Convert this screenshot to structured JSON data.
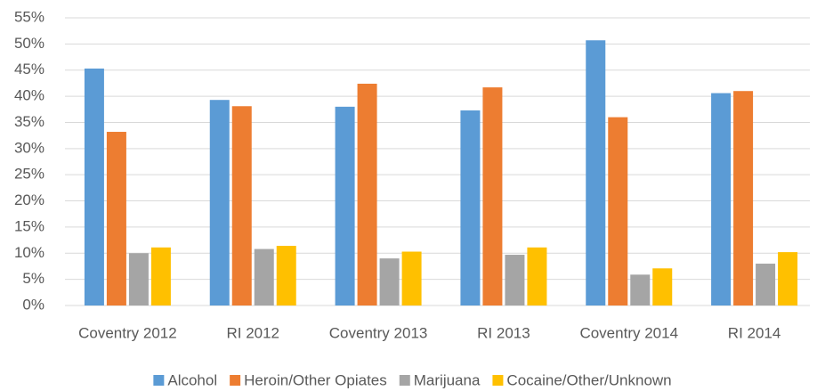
{
  "chart_data": {
    "type": "bar",
    "categories": [
      "Coventry 2012",
      "RI 2012",
      "Coventry 2013",
      "RI 2013",
      "Coventry 2014",
      "RI 2014"
    ],
    "series": [
      {
        "name": "Alcohol",
        "color": "#5b9bd5",
        "values": [
          45.3,
          39.3,
          38.0,
          37.3,
          50.7,
          40.6
        ]
      },
      {
        "name": "Heroin/Other Opiates",
        "color": "#ed7d31",
        "values": [
          33.2,
          38.1,
          42.4,
          41.7,
          36.0,
          41.0
        ]
      },
      {
        "name": "Marijuana",
        "color": "#a5a5a5",
        "values": [
          10.0,
          10.8,
          9.0,
          9.7,
          5.9,
          8.0
        ]
      },
      {
        "name": "Cocaine/Other/Unknown",
        "color": "#ffc000",
        "values": [
          11.1,
          11.4,
          10.3,
          11.1,
          7.1,
          10.2
        ]
      }
    ],
    "ylim": [
      0,
      55
    ],
    "yticks": [
      {
        "value": 0,
        "label": "0%"
      },
      {
        "value": 5,
        "label": "5%"
      },
      {
        "value": 10,
        "label": "10%"
      },
      {
        "value": 15,
        "label": "15%"
      },
      {
        "value": 20,
        "label": "20%"
      },
      {
        "value": 25,
        "label": "25%"
      },
      {
        "value": 30,
        "label": "30%"
      },
      {
        "value": 35,
        "label": "35%"
      },
      {
        "value": 40,
        "label": "40%"
      },
      {
        "value": 45,
        "label": "45%"
      },
      {
        "value": 50,
        "label": "50%"
      },
      {
        "value": 55,
        "label": "55%"
      }
    ],
    "grid": true,
    "legend": "bottom"
  }
}
